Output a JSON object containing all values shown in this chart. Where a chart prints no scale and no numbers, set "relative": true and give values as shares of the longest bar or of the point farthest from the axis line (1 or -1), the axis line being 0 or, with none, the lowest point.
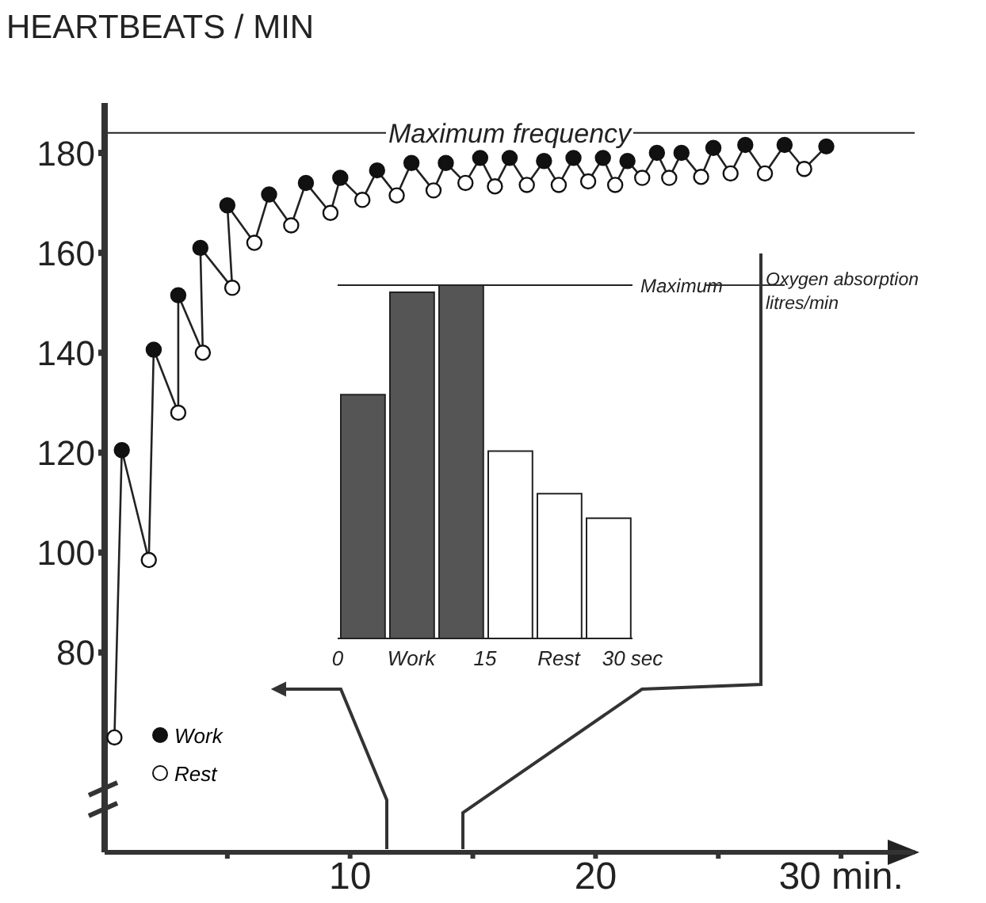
{
  "chart_data": [
    {
      "type": "line",
      "ylabel": "HEARTBEATS / MIN",
      "xlim": [
        0,
        33
      ],
      "ylim": [
        40,
        190
      ],
      "xticks": [
        {
          "value": 5,
          "label": null
        },
        10,
        {
          "value": 15,
          "label": null
        },
        20,
        {
          "value": 25,
          "label": null
        },
        {
          "value": 30,
          "label": "30 min."
        }
      ],
      "yticks": [
        80,
        100,
        120,
        140,
        160,
        180
      ],
      "grid": false,
      "legend": "bottom left",
      "ref_lines": [
        {
          "axis": "y",
          "value": 184,
          "label": "Maximum frequency",
          "color": "#222222"
        }
      ],
      "series": [
        {
          "type": "line",
          "color": "#222222",
          "marker": "none",
          "x": [
            0.4,
            0.7,
            1.8,
            2.0,
            3.0,
            3.0,
            4.0,
            3.9,
            5.2,
            5.0,
            6.1,
            6.7,
            7.6,
            8.2,
            9.2,
            9.6,
            10.5,
            11.1,
            11.9,
            12.5,
            13.4,
            13.9,
            14.7,
            15.3,
            15.9,
            16.5,
            17.2,
            17.9,
            18.5,
            19.1,
            19.7,
            20.3,
            20.8,
            21.3,
            21.9,
            22.5,
            23.0,
            23.5,
            24.3,
            24.8,
            25.5,
            26.1,
            26.9,
            27.7,
            28.5,
            29.4
          ],
          "values": [
            63,
            120.5,
            98.5,
            140.6,
            128,
            151.5,
            140,
            161,
            153,
            169.5,
            162,
            171.7,
            165.5,
            174,
            168,
            175,
            170.6,
            176.5,
            171.5,
            178,
            172.5,
            178,
            174,
            179,
            173.3,
            179,
            173.6,
            178.4,
            173.6,
            179,
            174.3,
            179,
            173.6,
            178.4,
            175,
            180,
            175,
            180,
            175.2,
            181,
            175.9,
            181.6,
            175.9,
            181.6,
            176.8,
            181.3
          ]
        },
        {
          "type": "scatter",
          "name": "Work",
          "color": "#111111",
          "marker": "circle",
          "x": [
            0.7,
            2.0,
            3.0,
            3.9,
            5.0,
            6.7,
            8.2,
            9.6,
            11.1,
            12.5,
            13.9,
            15.3,
            16.5,
            17.9,
            19.1,
            20.3,
            21.3,
            22.5,
            23.5,
            24.8,
            26.1,
            27.7,
            29.4
          ],
          "values": [
            120.5,
            140.6,
            151.5,
            161,
            169.5,
            171.7,
            174,
            175,
            176.5,
            178,
            178,
            179,
            179,
            178.4,
            179,
            179,
            178.4,
            180,
            180,
            181,
            181.6,
            181.6,
            181.3
          ]
        },
        {
          "type": "scatter",
          "name": "Rest",
          "color": "#ffffff",
          "marker": "circle",
          "x": [
            0.4,
            1.8,
            3.0,
            4.0,
            5.2,
            6.1,
            7.6,
            9.2,
            10.5,
            11.9,
            13.4,
            14.7,
            15.9,
            17.2,
            18.5,
            19.7,
            20.8,
            21.9,
            23.0,
            24.3,
            25.5,
            26.9,
            28.5
          ],
          "values": [
            63,
            98.5,
            128,
            140,
            153,
            162,
            165.5,
            168,
            170.6,
            171.5,
            172.5,
            174,
            173.3,
            173.6,
            173.6,
            174.3,
            173.6,
            175,
            175,
            175.2,
            175.9,
            175.9,
            176.8
          ]
        }
      ]
    },
    {
      "type": "bar",
      "relative": true,
      "ylabel": "Oxygen absorption litres/min",
      "x": [
        2.5,
        7.5,
        12.5,
        17.5,
        22.5,
        27.5
      ],
      "values": [
        0.69,
        0.98,
        1.0,
        0.53,
        0.41,
        0.34
      ],
      "colors": [
        "#555555",
        "#555555",
        "#555555",
        "#ffffff",
        "#ffffff",
        "#ffffff"
      ],
      "xlim": [
        0,
        30
      ],
      "xticks": [
        0,
        15,
        {
          "value": 30,
          "label": "30 sec"
        }
      ],
      "ref_lines": [
        {
          "axis": "y",
          "value": 1.0,
          "label": "Maximum",
          "color": "#222222"
        }
      ],
      "annotations": [
        "Work",
        "Rest"
      ]
    }
  ]
}
